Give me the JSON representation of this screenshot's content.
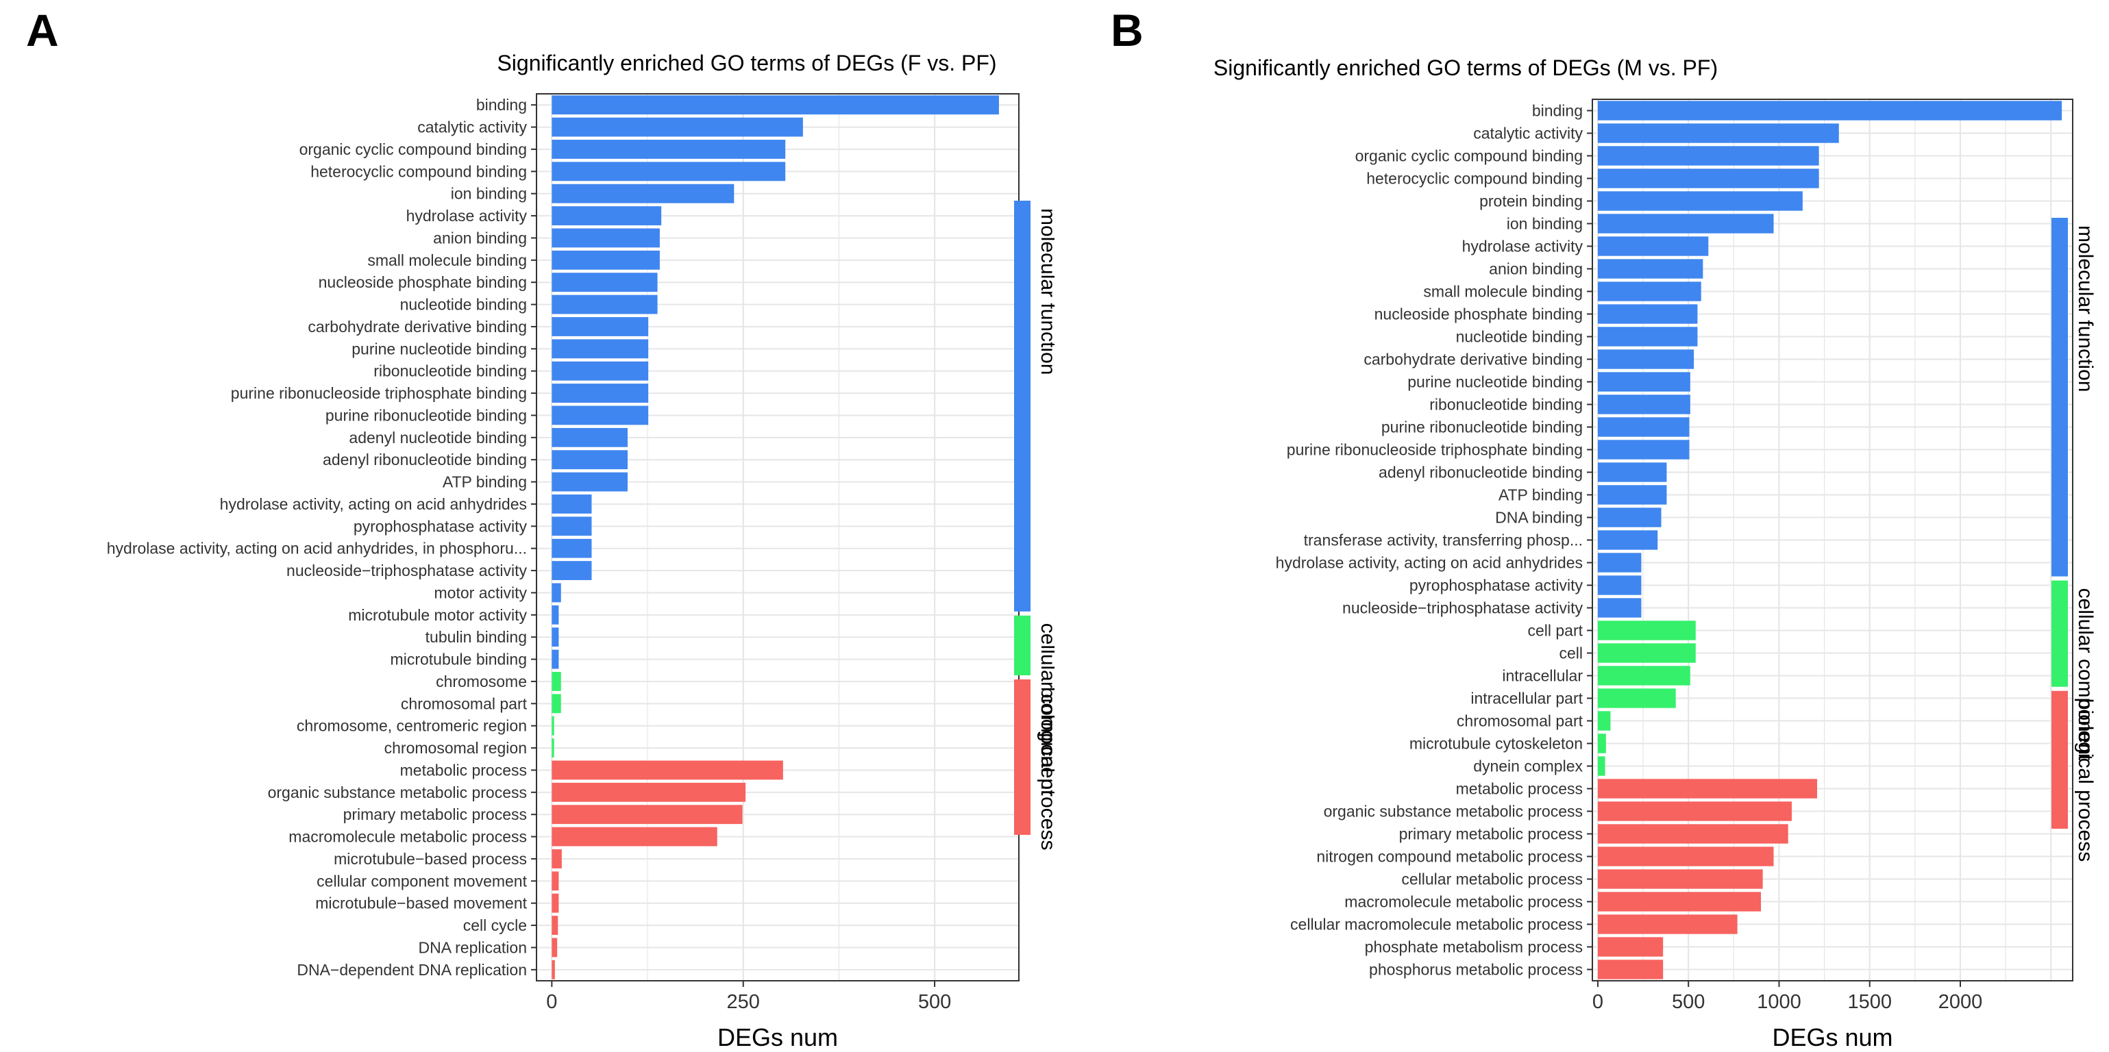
{
  "figure": {
    "panel_a_letter": "A",
    "panel_b_letter": "B"
  },
  "colors": {
    "molecular_function": "#3f86f0",
    "cellular_component": "#35f06b",
    "biological_process": "#f7635f",
    "grid": "#e6e6e6",
    "axis_text": "#333333"
  },
  "chart_data": [
    {
      "type": "bar",
      "orientation": "horizontal",
      "title": "Significantly enriched GO terms of DEGs (F vs. PF)",
      "xlabel": "DEGs num",
      "ylabel": "",
      "xlim": [
        -20,
        610
      ],
      "xticks": [
        0,
        250,
        500
      ],
      "legend_position": "right",
      "legend": [
        "molecular function",
        "cellular component",
        "biological process"
      ],
      "categories": [
        "binding",
        "catalytic activity",
        "organic cyclic compound binding",
        "heterocyclic compound binding",
        "ion binding",
        "hydrolase activity",
        "anion binding",
        "small molecule binding",
        "nucleoside phosphate binding",
        "nucleotide binding",
        "carbohydrate derivative binding",
        "purine nucleotide binding",
        "ribonucleotide binding",
        "purine ribonucleoside triphosphate binding",
        "purine ribonucleotide binding",
        "adenyl nucleotide binding",
        "adenyl ribonucleotide binding",
        "ATP binding",
        "hydrolase activity, acting on acid anhydrides",
        "pyrophosphatase activity",
        "hydrolase activity, acting on acid anhydrides, in phosphoru...",
        "nucleoside−triphosphatase activity",
        "motor activity",
        "microtubule motor activity",
        "tubulin binding",
        "microtubule binding",
        "chromosome",
        "chromosomal part",
        "chromosome, centromeric region",
        "chromosomal region",
        "metabolic process",
        "organic substance metabolic process",
        "primary metabolic process",
        "macromolecule metabolic process",
        "microtubule−based process",
        "cellular component movement",
        "microtubule−based movement",
        "cell cycle",
        "DNA replication",
        "DNA−dependent DNA replication"
      ],
      "values": [
        584,
        328,
        305,
        305,
        238,
        143,
        141,
        141,
        138,
        138,
        126,
        126,
        126,
        126,
        126,
        99,
        99,
        99,
        52,
        52,
        52,
        52,
        12,
        9,
        9,
        9,
        12,
        12,
        3,
        3,
        302,
        253,
        249,
        216,
        13,
        9,
        9,
        8,
        7,
        4
      ],
      "groups": [
        "molecular function",
        "molecular function",
        "molecular function",
        "molecular function",
        "molecular function",
        "molecular function",
        "molecular function",
        "molecular function",
        "molecular function",
        "molecular function",
        "molecular function",
        "molecular function",
        "molecular function",
        "molecular function",
        "molecular function",
        "molecular function",
        "molecular function",
        "molecular function",
        "molecular function",
        "molecular function",
        "molecular function",
        "molecular function",
        "molecular function",
        "molecular function",
        "molecular function",
        "molecular function",
        "cellular component",
        "cellular component",
        "cellular component",
        "cellular component",
        "biological process",
        "biological process",
        "biological process",
        "biological process",
        "biological process",
        "biological process",
        "biological process",
        "biological process",
        "biological process",
        "biological process"
      ]
    },
    {
      "type": "bar",
      "orientation": "horizontal",
      "title": "Significantly enriched GO terms of DEGs (M vs. PF)",
      "xlabel": "DEGs num",
      "ylabel": "",
      "xlim": [
        -30,
        2620
      ],
      "xticks": [
        0,
        500,
        1000,
        1500,
        2000
      ],
      "legend_position": "right",
      "legend": [
        "molecular function",
        "cellular component",
        "biological process"
      ],
      "categories": [
        "binding",
        "catalytic activity",
        "organic cyclic compound binding",
        "heterocyclic compound binding",
        "protein binding",
        "ion binding",
        "hydrolase activity",
        "anion binding",
        "small molecule binding",
        "nucleoside phosphate binding",
        "nucleotide binding",
        "carbohydrate derivative binding",
        "purine nucleotide binding",
        "ribonucleotide binding",
        "purine ribonucleotide binding",
        "purine ribonucleoside triphosphate binding",
        "adenyl ribonucleotide binding",
        "ATP binding",
        "DNA binding",
        "transferase activity, transferring phosp...",
        "hydrolase activity, acting on acid anhydrides",
        "pyrophosphatase activity",
        "nucleoside−triphosphatase activity",
        "cell part",
        "cell",
        "intracellular",
        "intracellular part",
        "chromosomal part",
        "microtubule cytoskeleton",
        "dynein complex",
        "metabolic process",
        "organic substance metabolic process",
        "primary metabolic process",
        "nitrogen compound metabolic process",
        "cellular metabolic process",
        "macromolecule metabolic process",
        "cellular macromolecule metabolic process",
        "phosphate metabolism process",
        "phosphorus metabolic process"
      ],
      "values": [
        2560,
        1330,
        1220,
        1220,
        1130,
        970,
        610,
        580,
        570,
        550,
        550,
        530,
        510,
        510,
        505,
        505,
        380,
        380,
        350,
        330,
        240,
        240,
        240,
        540,
        540,
        510,
        430,
        70,
        45,
        40,
        1210,
        1070,
        1050,
        970,
        910,
        900,
        770,
        360,
        360
      ],
      "groups": [
        "molecular function",
        "molecular function",
        "molecular function",
        "molecular function",
        "molecular function",
        "molecular function",
        "molecular function",
        "molecular function",
        "molecular function",
        "molecular function",
        "molecular function",
        "molecular function",
        "molecular function",
        "molecular function",
        "molecular function",
        "molecular function",
        "molecular function",
        "molecular function",
        "molecular function",
        "molecular function",
        "molecular function",
        "molecular function",
        "molecular function",
        "cellular component",
        "cellular component",
        "cellular component",
        "cellular component",
        "cellular component",
        "cellular component",
        "cellular component",
        "biological process",
        "biological process",
        "biological process",
        "biological process",
        "biological process",
        "biological process",
        "biological process",
        "biological process",
        "biological process"
      ]
    }
  ]
}
